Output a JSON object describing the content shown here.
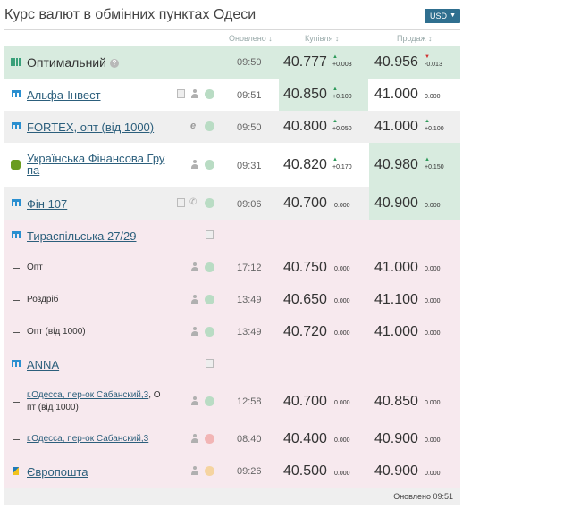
{
  "header": {
    "title": "Курс валют в обмінних пунктах Одеси",
    "currency": "USD"
  },
  "columns": {
    "updated": "Оновлено ↓",
    "buy": "Купівля ↕",
    "sell": "Продаж ↕"
  },
  "colors": {
    "green_row": "#d8ebdf",
    "grey_row": "#efefef",
    "pink_row": "#f7e9ee",
    "dot_green": "#b9dcc4",
    "dot_red": "#f2b5b5",
    "dot_orange": "#f5d4a0"
  },
  "rows": [
    {
      "name": "Оптимальний",
      "time": "09:50",
      "buy": "40.777",
      "buy_delta": "+0.003",
      "buy_dir": "up",
      "sell": "40.956",
      "sell_delta": "-0.013",
      "sell_dir": "down"
    },
    {
      "name": "Альфа-Інвест",
      "time": "09:51",
      "buy": "40.850",
      "buy_delta": "+0.100",
      "buy_dir": "up",
      "sell": "41.000",
      "sell_delta": "0.000"
    },
    {
      "name": "FORTEX, опт (від 1000)",
      "time": "09:50",
      "buy": "40.800",
      "buy_delta": "+0.050",
      "buy_dir": "up",
      "sell": "41.000",
      "sell_delta": "+0.100",
      "sell_dir": "up"
    },
    {
      "name_line1": "Українська Фінансова Гру",
      "name_line2": "па",
      "time": "09:31",
      "buy": "40.820",
      "buy_delta": "+0.170",
      "buy_dir": "up",
      "sell": "40.980",
      "sell_delta": "+0.150",
      "sell_dir": "up"
    },
    {
      "name": "Фін 107",
      "time": "09:06",
      "buy": "40.700",
      "buy_delta": "0.000",
      "sell": "40.900",
      "sell_delta": "0.000"
    },
    {
      "name": "Тираспільська 27/29"
    },
    {
      "name": "Опт",
      "time": "17:12",
      "buy": "40.750",
      "buy_delta": "0.000",
      "sell": "41.000",
      "sell_delta": "0.000"
    },
    {
      "name": "Роздріб",
      "time": "13:49",
      "buy": "40.650",
      "buy_delta": "0.000",
      "sell": "41.100",
      "sell_delta": "0.000"
    },
    {
      "name": "Опт (від 1000)",
      "time": "13:49",
      "buy": "40.720",
      "buy_delta": "0.000",
      "sell": "41.000",
      "sell_delta": "0.000"
    },
    {
      "name": "ANNA"
    },
    {
      "name_link": "г.Одесса, пер-ок Сабанский,3",
      "name_rest1": ", О",
      "name_rest2": "пт (від 1000)",
      "time": "12:58",
      "buy": "40.700",
      "buy_delta": "0.000",
      "sell": "40.850",
      "sell_delta": "0.000"
    },
    {
      "name_link": "г.Одесса, пер-ок Сабанский,3",
      "time": "08:40",
      "buy": "40.400",
      "buy_delta": "0.000",
      "sell": "40.900",
      "sell_delta": "0.000"
    },
    {
      "name": "Європошта",
      "time": "09:26",
      "buy": "40.500",
      "buy_delta": "0.000",
      "sell": "40.900",
      "sell_delta": "0.000"
    }
  ],
  "footer": {
    "updated": "Оновлено 09:51"
  }
}
